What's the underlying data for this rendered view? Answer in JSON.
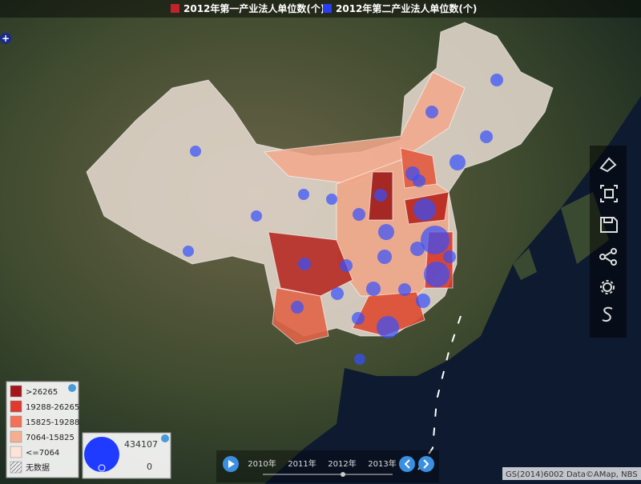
{
  "legend": {
    "items": [
      {
        "name": "2012年第一产业法人单位数(个)",
        "color": "#c0232b"
      },
      {
        "name": "2012年第二产业法人单位数(个)",
        "color": "#2a3cf0"
      }
    ]
  },
  "color_legend": {
    "classes": [
      {
        "label": ">26265",
        "color": "#a3161c"
      },
      {
        "label": "19288-26265",
        "color": "#de3a30"
      },
      {
        "label": "15825-19288",
        "color": "#f27158"
      },
      {
        "label": "7064-15825",
        "color": "#f6ad90"
      },
      {
        "label": "<=7064",
        "color": "#fde3d8"
      },
      {
        "label": "无数据",
        "color": "#ffffff"
      }
    ]
  },
  "size_legend": {
    "max": 434107,
    "min": 0
  },
  "timeline": {
    "years": [
      "2010年",
      "2011年",
      "2012年",
      "2013年"
    ]
  },
  "attribution": "GS(2014)6002 Data©AMap, NBS"
}
